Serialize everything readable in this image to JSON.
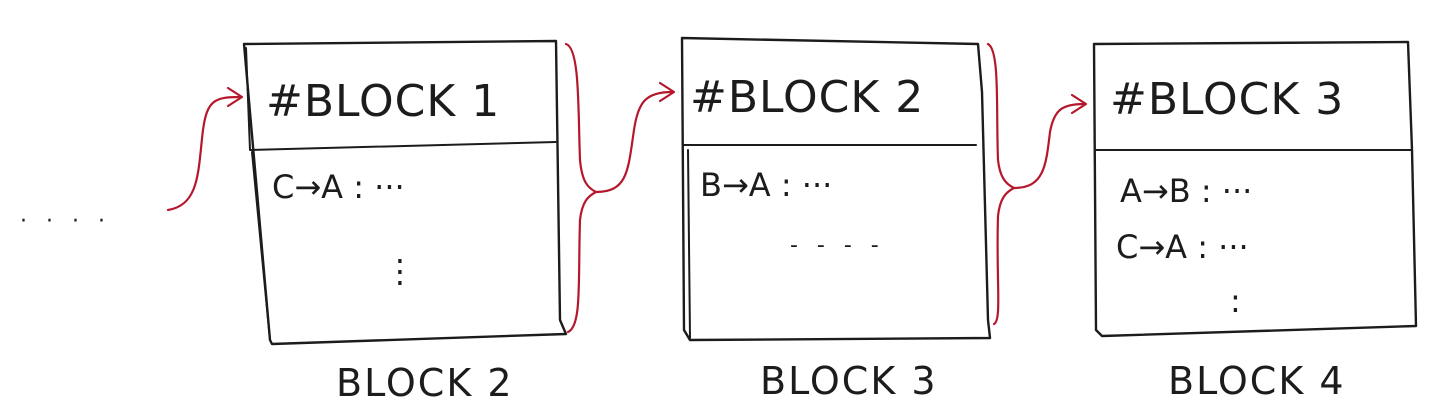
{
  "diagram": {
    "lead_in": "· · · ·",
    "blocks": [
      {
        "title": "#BLOCK 1",
        "entries": [
          "C→A : ···"
        ],
        "ellipsis": "⋮",
        "caption": "BLOCK 2"
      },
      {
        "title": "#BLOCK 2",
        "entries": [
          "B→A : ···"
        ],
        "ellipsis": "- - - -",
        "caption": "BLOCK 3"
      },
      {
        "title": "#BLOCK 3",
        "entries": [
          "A→B : ···",
          "C→A : ···"
        ],
        "ellipsis": ":",
        "caption": "BLOCK 4"
      }
    ],
    "colors": {
      "ink": "#1c1c1c",
      "arrow": "#b5182b",
      "background": "#ffffff"
    }
  }
}
